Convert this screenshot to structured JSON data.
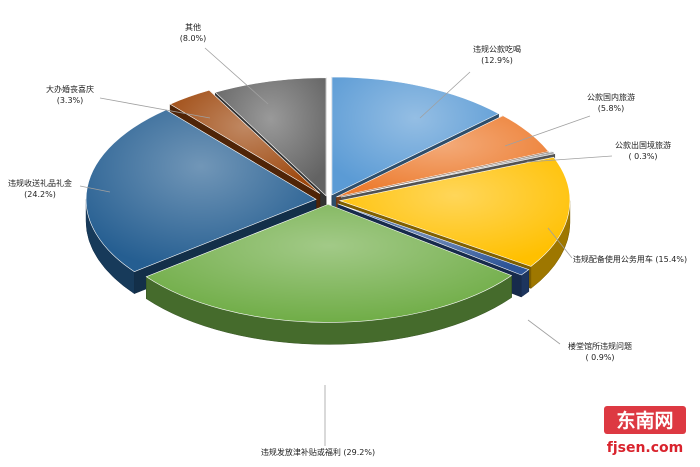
{
  "chart_data": {
    "type": "pie",
    "title": "",
    "slices": [
      {
        "name": "违规公款吃喝",
        "label": "(12.9%)",
        "value": 12.9,
        "color": "#5b9bd5"
      },
      {
        "name": "公款国内旅游",
        "label": "(5.8%)",
        "value": 5.8,
        "color": "#ed7d31"
      },
      {
        "name": "公款出国境旅游",
        "label": "( 0.3%)",
        "value": 0.3,
        "color": "#a5a5a5"
      },
      {
        "name": "违规配备使用公务用车",
        "label": "(15.4%)",
        "value": 15.4,
        "color": "#ffc000"
      },
      {
        "name": "楼堂馆所违规问题",
        "label": "( 0.9%)",
        "value": 0.9,
        "color": "#2e5597"
      },
      {
        "name": "违规发放津补贴或福利",
        "label": "(29.2%)",
        "value": 29.2,
        "color": "#70ad47"
      },
      {
        "name": "违规收送礼品礼金",
        "label": "(24.2%)",
        "value": 24.2,
        "color": "#255e91"
      },
      {
        "name": "大办婚丧喜庆",
        "label": "(3.3%)",
        "value": 3.3,
        "color": "#9e480e"
      },
      {
        "name": "其他",
        "label": "(8.0%)",
        "value": 8.0,
        "color": "#636363"
      }
    ],
    "legend": "none"
  },
  "watermark": {
    "brand": "东南网",
    "url": "fjsen.com"
  }
}
